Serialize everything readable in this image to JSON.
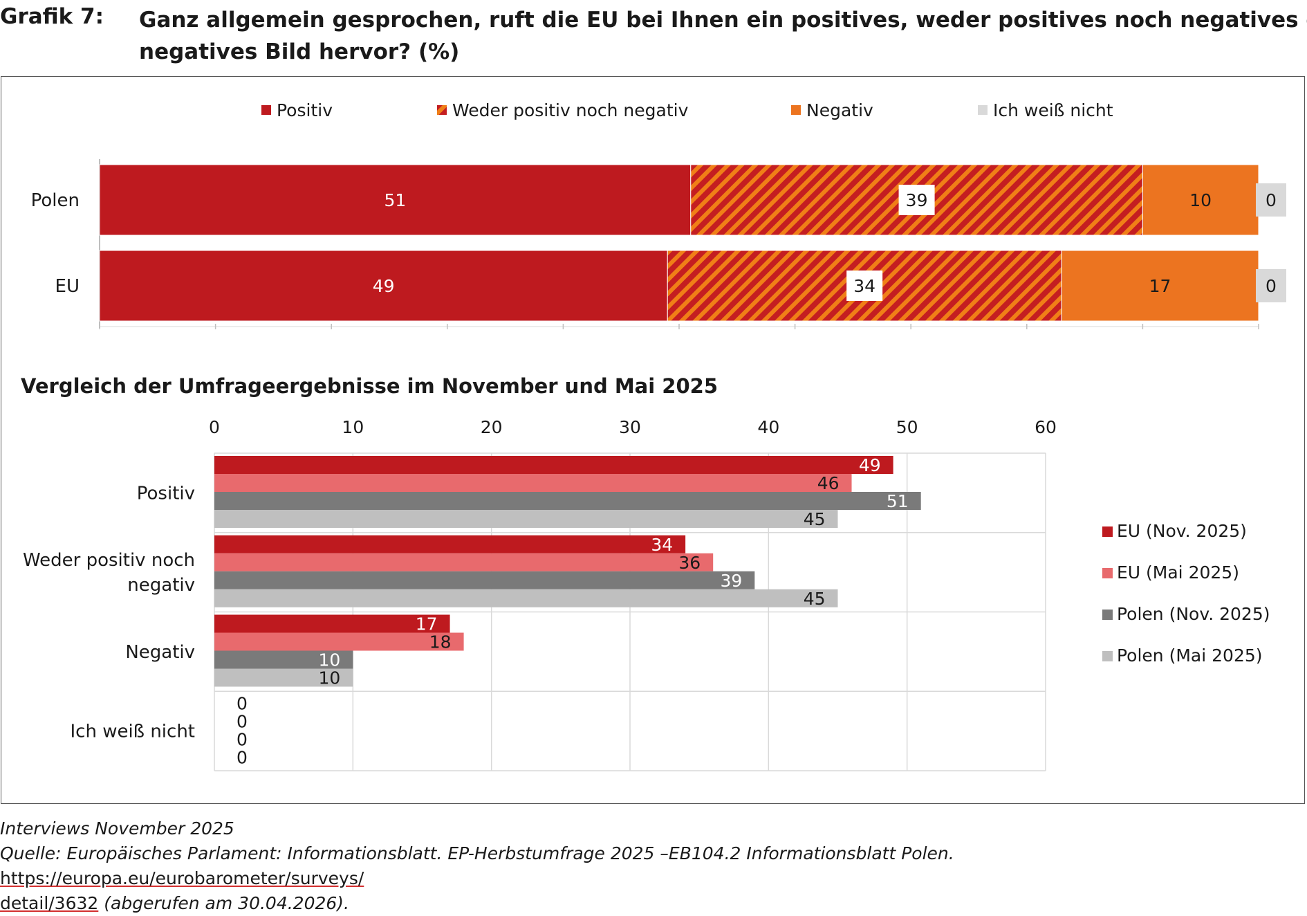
{
  "header": {
    "label": "Grafik 7:",
    "title_line1": "Ganz allgemein gesprochen, ruft die EU bei Ihnen ein positives, weder positives noch negatives oder",
    "title_line2": "negatives Bild hervor? (%)"
  },
  "colors": {
    "positiv": "#be1a1f",
    "weder_base": "#c41e21",
    "weder_stripe": "#f07f17",
    "negativ": "#ec7420",
    "weiss_nicht": "#d9d9d9",
    "eu_nov": "#be1a1f",
    "eu_mai": "#e86a6d",
    "polen_nov": "#7a7a7a",
    "polen_mai": "#bfbfbf"
  },
  "chart_data": [
    {
      "type": "bar",
      "orientation": "horizontal-stacked",
      "categories": [
        "Polen",
        "EU"
      ],
      "series": [
        {
          "name": "Positiv",
          "values": [
            51,
            49
          ]
        },
        {
          "name": "Weder positiv noch negativ",
          "values": [
            39,
            34
          ]
        },
        {
          "name": "Negativ",
          "values": [
            10,
            17
          ]
        },
        {
          "name": "Ich weiß nicht",
          "values": [
            0,
            0
          ]
        }
      ],
      "legend": "top",
      "xlim": [
        0,
        100
      ]
    },
    {
      "type": "bar",
      "orientation": "horizontal-grouped",
      "title": "Vergleich der Umfrageergebnisse im November und Mai 2025",
      "categories": [
        "Positiv",
        "Weder positiv noch negativ",
        "Negativ",
        "Ich weiß nicht"
      ],
      "category_lines": [
        [
          "Positiv"
        ],
        [
          "Weder positiv noch",
          "negativ"
        ],
        [
          "Negativ"
        ],
        [
          "Ich weiß nicht"
        ]
      ],
      "series": [
        {
          "name": "EU (Nov. 2025)",
          "values": [
            49,
            34,
            17,
            0
          ]
        },
        {
          "name": "EU (Mai 2025)",
          "values": [
            46,
            36,
            18,
            0
          ]
        },
        {
          "name": "Polen (Nov. 2025)",
          "values": [
            51,
            39,
            10,
            0
          ]
        },
        {
          "name": "Polen (Mai 2025)",
          "values": [
            45,
            45,
            10,
            0
          ]
        }
      ],
      "xticks": [
        "0",
        "10",
        "20",
        "30",
        "40",
        "50",
        "60"
      ],
      "xlim": [
        0,
        60
      ],
      "grid": true,
      "legend": "right"
    }
  ],
  "footer": {
    "line1": "Interviews November 2025",
    "source_text": "Quelle: Europäisches Parlament: Informationsblatt. EP-Herbstumfrage 2025 –EB104.2 Informationsblatt Polen. ",
    "link_part1": "https://europa.eu/eurobarometer/surveys/",
    "link_part2": "detail/3632",
    "accessed": " (abgerufen am 30.04.2026)."
  }
}
